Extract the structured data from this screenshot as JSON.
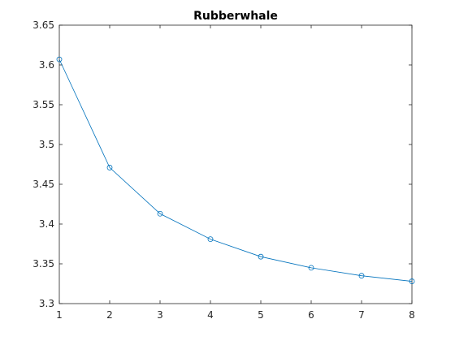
{
  "chart_data": {
    "type": "line",
    "title": "Rubberwhale",
    "xlabel": "",
    "ylabel": "",
    "x": [
      1,
      2,
      3,
      4,
      5,
      6,
      7,
      8
    ],
    "series": [
      {
        "values": [
          3.607,
          3.471,
          3.413,
          3.381,
          3.359,
          3.345,
          3.335,
          3.328
        ],
        "color": "#0072BD",
        "marker": "circle"
      }
    ],
    "xlim": [
      1,
      8
    ],
    "ylim": [
      3.3,
      3.65
    ],
    "xticks": [
      "1",
      "2",
      "3",
      "4",
      "5",
      "6",
      "7",
      "8"
    ],
    "yticks": [
      "3.3",
      "3.35",
      "3.4",
      "3.45",
      "3.5",
      "3.55",
      "3.6",
      "3.65"
    ],
    "grid": false,
    "box": true
  }
}
